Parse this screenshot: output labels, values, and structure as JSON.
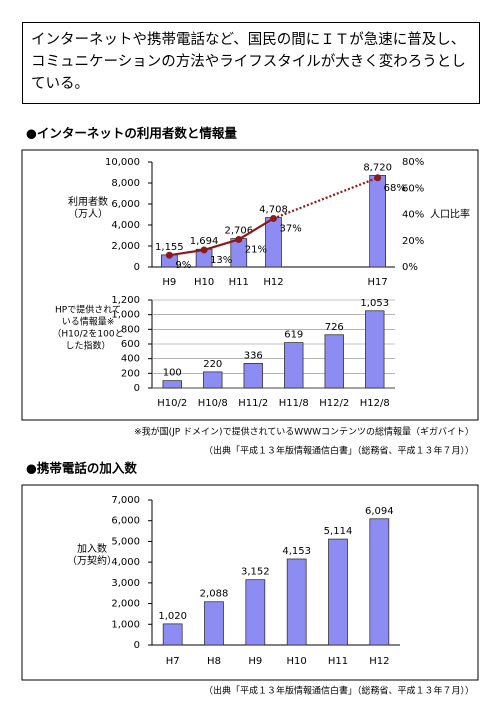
{
  "intro": "インターネットや携帯電話など、国民の間にＩＴが急速に普及し、コミュニケーションの方法やライフスタイルが大きく変わろうとしている。",
  "chart_data": [
    {
      "type": "bar",
      "title": "●インターネットの利用者数と情報量",
      "ylabel": [
        "利用者数",
        "（万人）"
      ],
      "y2label": "人口比率",
      "categories": [
        "H9",
        "H10",
        "H11",
        "H12",
        null,
        null,
        "H17"
      ],
      "values": [
        1155,
        1694,
        2706,
        4708,
        null,
        null,
        8720
      ],
      "value_labels": [
        "1,155",
        "1,694",
        "2,706",
        "4,708",
        null,
        null,
        "8,720"
      ],
      "color": "#8c8cf2",
      "ylim": [
        0,
        10000
      ],
      "yticks": [
        0,
        {
          "value": 2000,
          "label": "2,000"
        },
        {
          "value": 4000,
          "label": "4,000"
        },
        {
          "value": 6000,
          "label": "6,000"
        },
        {
          "value": 8000,
          "label": "8,000"
        },
        {
          "value": 10000,
          "label": "10,000"
        }
      ],
      "y2lim": [
        0,
        80
      ],
      "y2ticks": [
        {
          "value": 0,
          "label": "0%"
        },
        {
          "value": 20,
          "label": "20%"
        },
        {
          "value": 40,
          "label": "40%"
        },
        {
          "value": 60,
          "label": "60%"
        },
        {
          "value": 80,
          "label": "80%"
        }
      ],
      "line": {
        "axis": "y2",
        "color": "#8b1a1a",
        "values": [
          9,
          13,
          21,
          37,
          null,
          null,
          68
        ],
        "value_labels": [
          "9%",
          "13%",
          "21%",
          "37%",
          null,
          null,
          "68%"
        ]
      },
      "grid": false
    },
    {
      "type": "bar",
      "ylabel": [
        "HPで提供されて",
        "いる情報量※",
        "（H10/2を100と",
        "した指数）"
      ],
      "categories": [
        "H10/2",
        "H10/8",
        "H11/2",
        "H11/8",
        "H12/2",
        "H12/8"
      ],
      "values": [
        100,
        220,
        336,
        619,
        726,
        1053
      ],
      "value_labels": [
        "100",
        "220",
        "336",
        "619",
        "726",
        "1,053"
      ],
      "color": "#8c8cf2",
      "ylim": [
        0,
        1200
      ],
      "yticks": [
        0,
        200,
        400,
        600,
        800,
        {
          "value": 1000,
          "label": "1,000"
        },
        {
          "value": 1200,
          "label": "1,200"
        }
      ],
      "grid": true,
      "notes": [
        "※我が国(JP ドメイン)で提供されているWWWコンテンツの総情報量（ギガバイト）",
        "（出典「平成１３年版情報通信白書」（総務省、平成１３年７月））"
      ]
    },
    {
      "type": "bar",
      "title": "●携帯電話の加入数",
      "ylabel": [
        "加入数",
        "（万契約）"
      ],
      "categories": [
        "H7",
        "H8",
        "H9",
        "H10",
        "H11",
        "H12"
      ],
      "values": [
        1020,
        2088,
        3152,
        4153,
        5114,
        6094
      ],
      "value_labels": [
        "1,020",
        "2,088",
        "3,152",
        "4,153",
        "5,114",
        "6,094"
      ],
      "color": "#8c8cf2",
      "ylim": [
        0,
        7000
      ],
      "yticks": [
        0,
        {
          "value": 1000,
          "label": "1,000"
        },
        {
          "value": 2000,
          "label": "2,000"
        },
        {
          "value": 3000,
          "label": "3,000"
        },
        {
          "value": 4000,
          "label": "4,000"
        },
        {
          "value": 5000,
          "label": "5,000"
        },
        {
          "value": 6000,
          "label": "6,000"
        },
        {
          "value": 7000,
          "label": "7,000"
        }
      ],
      "grid": false,
      "notes": [
        "（出典「平成１３年版情報通信白書」（総務省、平成１３年７月））"
      ]
    }
  ]
}
